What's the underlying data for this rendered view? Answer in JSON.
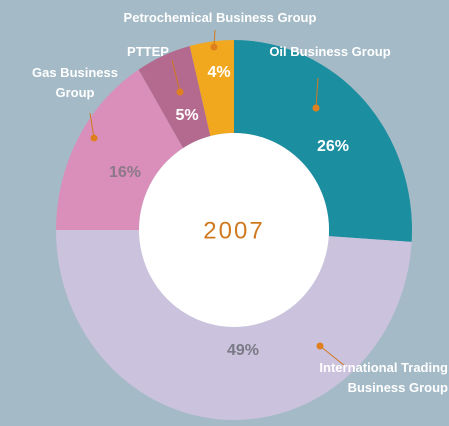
{
  "chart_data": {
    "type": "donut",
    "center_label": "2007",
    "categories": [
      "Oil Business Group",
      "International Trading Business Group",
      "Gas Business Group",
      "PTTEP",
      "Petrochemical Business Group"
    ],
    "values": [
      26,
      49,
      16,
      5,
      4
    ],
    "value_labels": [
      "26%",
      "49%",
      "16%",
      "5%",
      "4%"
    ],
    "colors": [
      "#1b8ea0",
      "#cbc2dd",
      "#d98fba",
      "#b46a8f",
      "#f2a81e"
    ]
  }
}
